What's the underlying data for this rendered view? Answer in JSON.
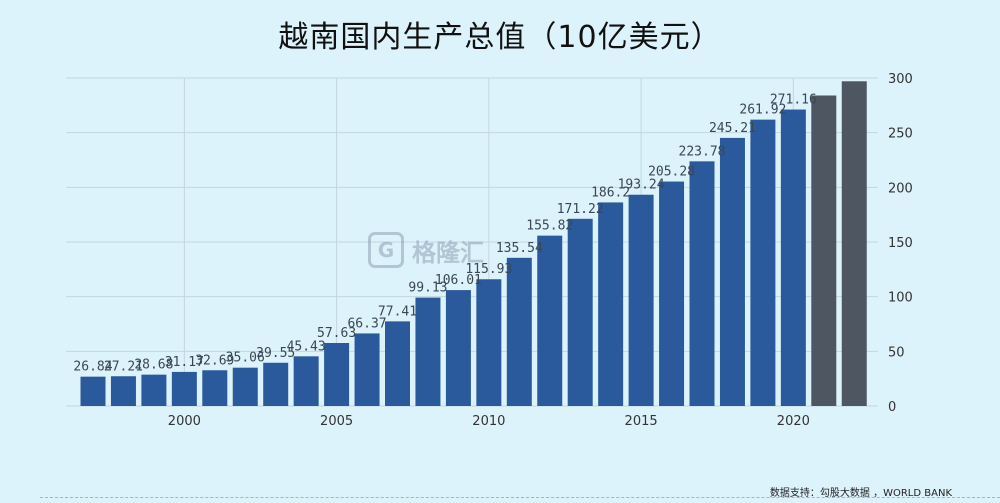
{
  "title": "越南国内生产总值（10亿美元）",
  "source": "数据支持：勾股大数据 ，WORLD BANK",
  "watermark": {
    "logo": "G",
    "brand": "格隆汇"
  },
  "colors": {
    "background": "#ddf3fb",
    "bar": "#2a5a9b",
    "bar_forecast": "#4d5661",
    "grid": "#c3d6e0",
    "text": "#333333"
  },
  "chart_data": {
    "type": "bar",
    "title": "越南国内生产总值（10亿美元）",
    "xlabel": "",
    "ylabel": "",
    "x": [
      1997,
      1998,
      1999,
      2000,
      2001,
      2002,
      2003,
      2004,
      2005,
      2006,
      2007,
      2008,
      2009,
      2010,
      2011,
      2012,
      2013,
      2014,
      2015,
      2016,
      2017,
      2018,
      2019,
      2020,
      2021,
      2022
    ],
    "values": [
      26.84,
      27.21,
      28.68,
      31.17,
      32.69,
      35.06,
      39.55,
      45.43,
      57.63,
      66.37,
      77.41,
      99.13,
      106.01,
      115.93,
      135.54,
      155.82,
      171.22,
      186.2,
      193.24,
      205.28,
      223.78,
      245.21,
      261.92,
      271.16,
      284,
      297
    ],
    "labels": [
      "26.84",
      "27.21",
      "28.68",
      "31.17",
      "32.69",
      "35.06",
      "39.55",
      "45.43",
      "57.63",
      "66.37",
      "77.41",
      "99.13",
      "106.01",
      "115.93",
      "135.54",
      "155.82",
      "171.22",
      "186.2",
      "193.24",
      "205.28",
      "223.78",
      "245.21",
      "261.92",
      "271.16",
      "",
      ""
    ],
    "forecast_from": 2021,
    "x_ticks": [
      2000,
      2005,
      2010,
      2015,
      2020
    ],
    "y_ticks": [
      0,
      50,
      100,
      150,
      200,
      250,
      300
    ],
    "ylim": [
      0,
      300
    ],
    "y_axis_position": "right",
    "grid": true
  }
}
